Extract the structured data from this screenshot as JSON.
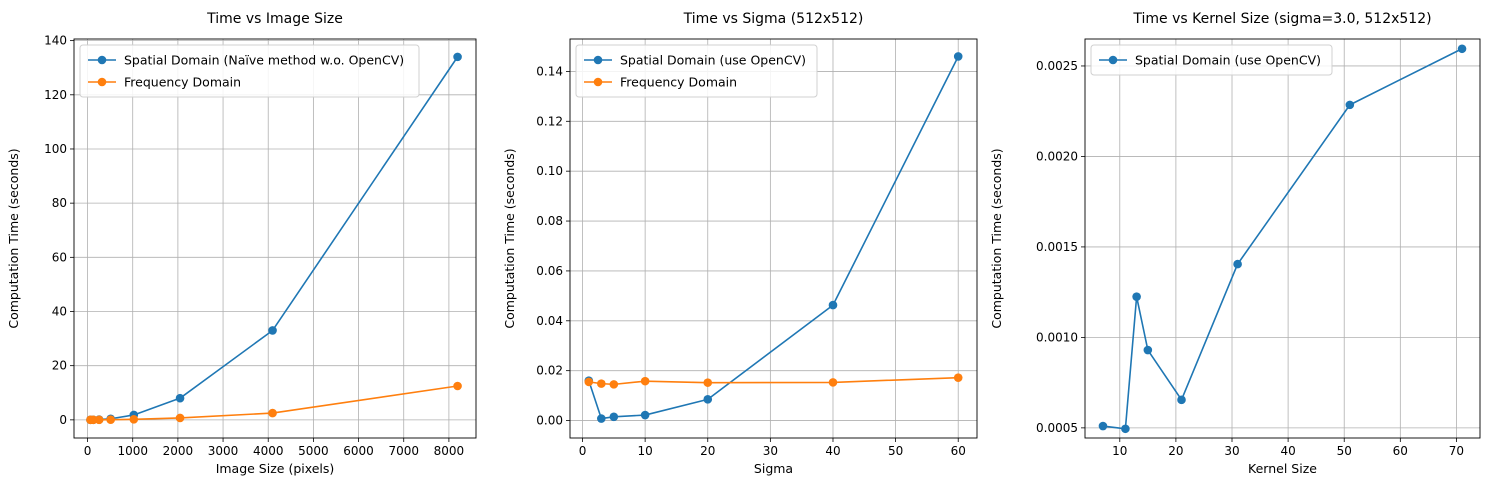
{
  "chart_data": [
    {
      "type": "line",
      "title": "Time vs Image Size",
      "xlabel": "Image Size (pixels)",
      "ylabel": "Computation Time (seconds)",
      "xlim": [
        -300,
        8600
      ],
      "ylim": [
        -6.7,
        140.6
      ],
      "xticks": [
        0,
        1000,
        2000,
        3000,
        4000,
        5000,
        6000,
        7000,
        8000
      ],
      "yticks": [
        0,
        20,
        40,
        60,
        80,
        100,
        120,
        140
      ],
      "tick_format": "int",
      "grid": true,
      "legend_position": "upper left",
      "series": [
        {
          "name": "Spatial Domain (Naïve method w.o. OpenCV)",
          "color": "#1f77b4",
          "x": [
            64,
            128,
            256,
            512,
            1024,
            2048,
            4096,
            8192
          ],
          "y": [
            0.01,
            0.03,
            0.1,
            0.4,
            1.8,
            8.0,
            33.0,
            134.0
          ]
        },
        {
          "name": "Frequency Domain",
          "color": "#ff7f0e",
          "x": [
            64,
            128,
            256,
            512,
            1024,
            2048,
            4096,
            8192
          ],
          "y": [
            0.01,
            0.01,
            0.02,
            0.05,
            0.2,
            0.7,
            2.5,
            12.5
          ]
        }
      ]
    },
    {
      "type": "line",
      "title": "Time vs Sigma (512x512)",
      "xlabel": "Sigma",
      "ylabel": "Computation Time (seconds)",
      "xlim": [
        -2.0,
        63.0
      ],
      "ylim": [
        -0.007,
        0.153
      ],
      "xticks": [
        0,
        10,
        20,
        30,
        40,
        50,
        60
      ],
      "yticks": [
        0.0,
        0.02,
        0.04,
        0.06,
        0.08,
        0.1,
        0.12,
        0.14
      ],
      "tick_format": "2dp",
      "grid": true,
      "legend_position": "upper left",
      "series": [
        {
          "name": "Spatial Domain (use OpenCV)",
          "color": "#1f77b4",
          "x": [
            1,
            3,
            5,
            10,
            20,
            40,
            60
          ],
          "y": [
            0.016,
            0.0008,
            0.0015,
            0.0022,
            0.0085,
            0.0463,
            0.146
          ]
        },
        {
          "name": "Frequency Domain",
          "color": "#ff7f0e",
          "x": [
            1,
            3,
            5,
            10,
            20,
            40,
            60
          ],
          "y": [
            0.0155,
            0.0148,
            0.0145,
            0.0158,
            0.0152,
            0.0153,
            0.0172
          ]
        }
      ]
    },
    {
      "type": "line",
      "title": "Time vs Kernel Size (sigma=3.0, 512x512)",
      "xlabel": "Kernel Size",
      "ylabel": "Computation Time (seconds)",
      "xlim": [
        3.8,
        74.2
      ],
      "ylim": [
        0.000444,
        0.002649
      ],
      "xticks": [
        10,
        20,
        30,
        40,
        50,
        60,
        70
      ],
      "yticks": [
        0.0005,
        0.001,
        0.0015,
        0.002,
        0.0025
      ],
      "tick_format": "4dp",
      "grid": true,
      "legend_position": "upper left",
      "series": [
        {
          "name": "Spatial Domain (use OpenCV)",
          "color": "#1f77b4",
          "x": [
            7,
            11,
            13,
            15,
            21,
            31,
            51,
            71
          ],
          "y": [
            0.00051,
            0.000495,
            0.001225,
            0.00093,
            0.000655,
            0.001405,
            0.002285,
            0.002595
          ]
        }
      ]
    }
  ]
}
